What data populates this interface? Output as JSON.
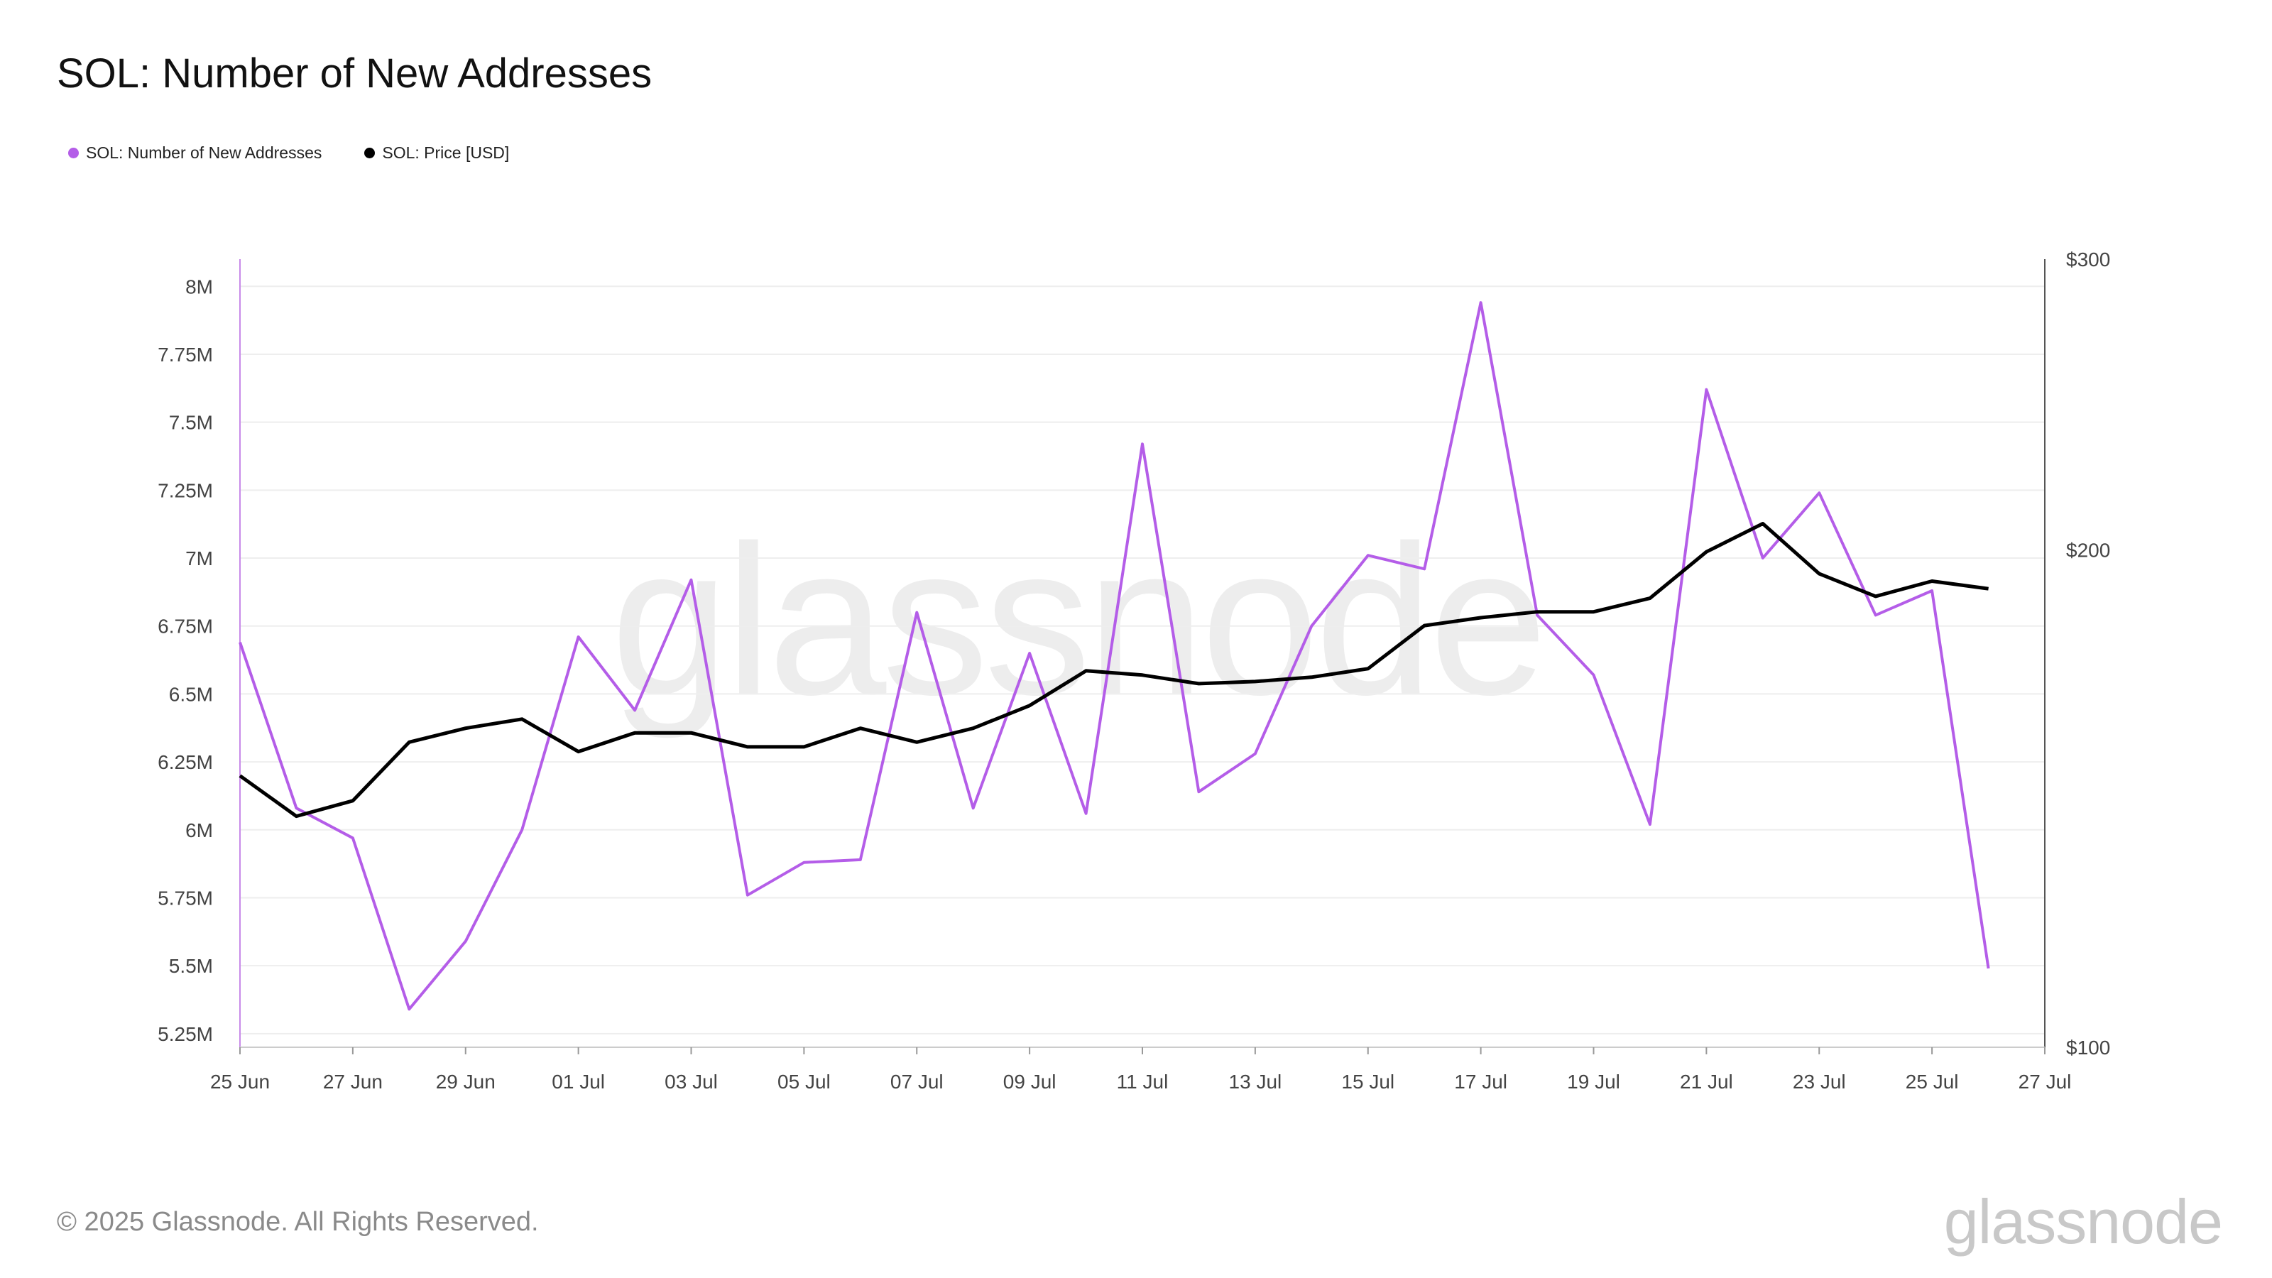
{
  "title": "SOL: Number of New Addresses",
  "legend": [
    {
      "label": "SOL: Number of New Addresses",
      "color": "#b45de8"
    },
    {
      "label": "SOL: Price [USD]",
      "color": "#000000"
    }
  ],
  "watermark": "glassnode",
  "footer": {
    "copyright": "© 2025 Glassnode. All Rights Reserved.",
    "logo": "glassnode"
  },
  "chart_data": {
    "type": "line",
    "x": [
      "2025-06-25",
      "2025-06-26",
      "2025-06-27",
      "2025-06-28",
      "2025-06-29",
      "2025-06-30",
      "2025-07-01",
      "2025-07-02",
      "2025-07-03",
      "2025-07-04",
      "2025-07-05",
      "2025-07-06",
      "2025-07-07",
      "2025-07-08",
      "2025-07-09",
      "2025-07-10",
      "2025-07-11",
      "2025-07-12",
      "2025-07-13",
      "2025-07-14",
      "2025-07-15",
      "2025-07-16",
      "2025-07-17",
      "2025-07-18",
      "2025-07-19",
      "2025-07-20",
      "2025-07-21",
      "2025-07-22",
      "2025-07-23",
      "2025-07-24",
      "2025-07-25",
      "2025-07-26"
    ],
    "x_ticks": [
      "25 Jun",
      "27 Jun",
      "29 Jun",
      "01 Jul",
      "03 Jul",
      "05 Jul",
      "07 Jul",
      "09 Jul",
      "11 Jul",
      "13 Jul",
      "15 Jul",
      "17 Jul",
      "19 Jul",
      "21 Jul",
      "23 Jul",
      "25 Jul",
      "27 Jul"
    ],
    "x_range": [
      "2025-06-25",
      "2025-07-27"
    ],
    "series": [
      {
        "name": "SOL: Number of New Addresses",
        "axis": "left",
        "color": "#b45de8",
        "values": [
          6.69,
          6.08,
          5.97,
          5.34,
          5.59,
          6.0,
          6.71,
          6.44,
          6.92,
          5.76,
          5.88,
          5.89,
          6.8,
          6.08,
          6.65,
          6.06,
          7.42,
          6.14,
          6.28,
          6.75,
          7.01,
          6.96,
          7.94,
          6.79,
          6.57,
          6.02,
          7.62,
          7.0,
          7.24,
          6.79,
          6.88,
          5.49
        ]
      },
      {
        "name": "SOL: Price [USD]",
        "axis": "right",
        "color": "#000000",
        "values": [
          146,
          138,
          141,
          153,
          156,
          158,
          151,
          155,
          155,
          152,
          152,
          156,
          153,
          156,
          161,
          169,
          168,
          166,
          166.5,
          167.5,
          169.5,
          180,
          182,
          183.5,
          183.5,
          187,
          199.5,
          207.5,
          193.5,
          187.5,
          191.5,
          189.5
        ]
      }
    ],
    "y_left": {
      "ticks": [
        5250000,
        5500000,
        5750000,
        6000000,
        6250000,
        6500000,
        6750000,
        7000000,
        7250000,
        7500000,
        7750000,
        8000000
      ],
      "tick_labels": [
        "5.25M",
        "5.5M",
        "5.75M",
        "6M",
        "6.25M",
        "6.5M",
        "6.75M",
        "7M",
        "7.25M",
        "7.5M",
        "7.75M",
        "8M"
      ],
      "range_millions": [
        5.2,
        8.1
      ]
    },
    "y_right": {
      "ticks": [
        100,
        200,
        300
      ],
      "tick_labels": [
        "$100",
        "$200",
        "$300"
      ],
      "scale": "log",
      "range": [
        100,
        300
      ]
    },
    "grid": true,
    "legend_position": "top-left"
  }
}
